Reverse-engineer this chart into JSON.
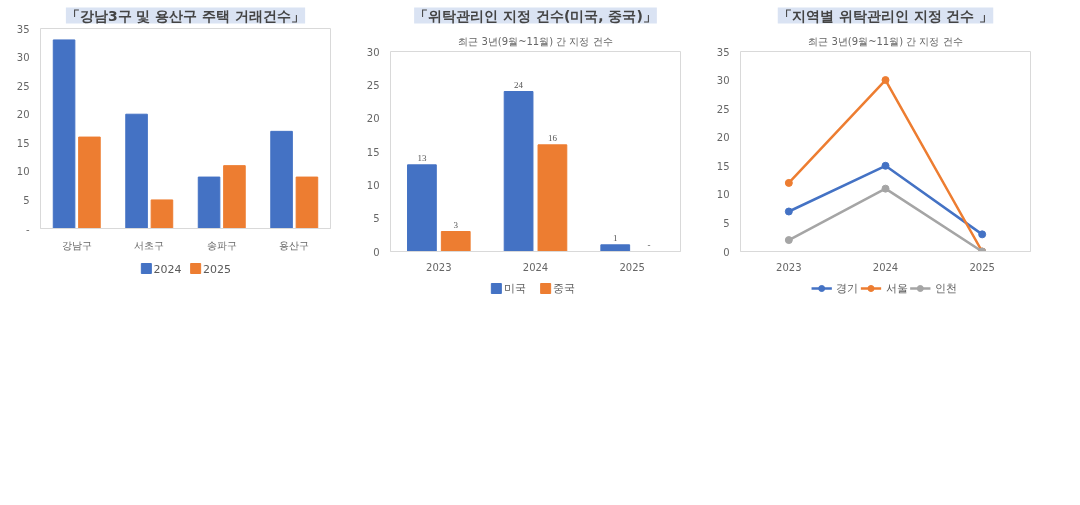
{
  "chart_data": [
    {
      "type": "bar",
      "title": "「강남3구 및 용산구 주택 거래건수」",
      "categories": [
        "강남구",
        "서초구",
        "송파구",
        "용산구"
      ],
      "series": [
        {
          "name": "2024",
          "color": "#4472c4",
          "values": [
            33,
            20,
            9,
            17
          ]
        },
        {
          "name": "2025",
          "color": "#ed7d31",
          "values": [
            16,
            5,
            11,
            9
          ]
        }
      ],
      "ylim": [
        0,
        35
      ],
      "yticks": [
        {
          "value": 0,
          "label": "-"
        },
        5,
        10,
        15,
        20,
        25,
        30,
        35
      ],
      "legend": "bottom"
    },
    {
      "type": "bar",
      "title": "「위탁관리인 지정 건수(미국, 중국)」",
      "subtitle": "최근 3년(9월~11월) 간 지정 건수",
      "categories": [
        "2023",
        "2024",
        "2025"
      ],
      "series": [
        {
          "name": "미국",
          "color": "#4472c4",
          "values": [
            13,
            24,
            1
          ],
          "value_labels": [
            "13",
            "24",
            "1"
          ]
        },
        {
          "name": "중국",
          "color": "#ed7d31",
          "values": [
            3,
            16,
            0
          ],
          "value_labels": [
            "3",
            "16",
            "-"
          ]
        }
      ],
      "ylim": [
        0,
        30
      ],
      "yticks": [
        0,
        5,
        10,
        15,
        20,
        25,
        30
      ],
      "legend": "bottom"
    },
    {
      "type": "line",
      "title": "「지역별 위탁관리인 지정 건수 」",
      "subtitle": "최근 3년(9월~11월) 간 지정 건수",
      "categories": [
        "2023",
        "2024",
        "2025"
      ],
      "series": [
        {
          "name": "경기",
          "color": "#4472c4",
          "values": [
            7,
            15,
            3
          ]
        },
        {
          "name": "서울",
          "color": "#ed7d31",
          "values": [
            12,
            30,
            0
          ]
        },
        {
          "name": "인천",
          "color": "#a5a5a5",
          "values": [
            2,
            11,
            0
          ]
        }
      ],
      "ylim": [
        0,
        35
      ],
      "yticks": [
        0,
        5,
        10,
        15,
        20,
        25,
        30,
        35
      ],
      "legend": "bottom",
      "marker": "circle"
    }
  ]
}
